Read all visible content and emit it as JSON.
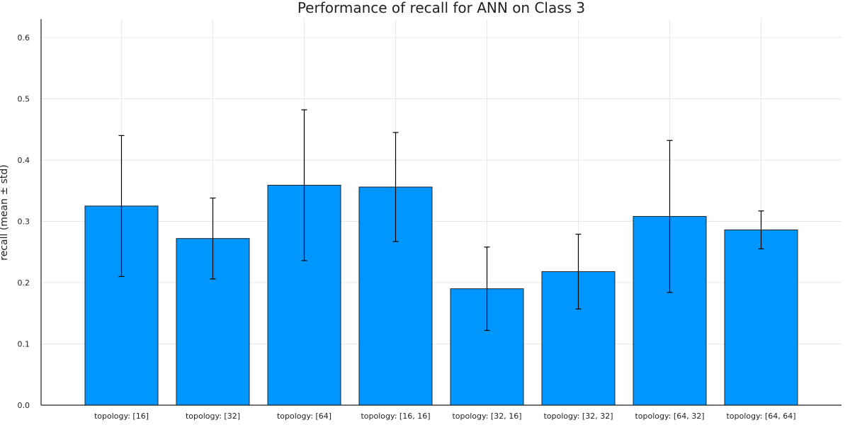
{
  "chart_data": {
    "type": "bar",
    "title": "Performance of recall for ANN on Class 3",
    "xlabel": "",
    "ylabel": "recall (mean ± std)",
    "categories": [
      "topology: [16]",
      "topology: [32]",
      "topology: [64]",
      "topology: [16, 16]",
      "topology: [32, 16]",
      "topology: [32, 32]",
      "topology: [64, 32]",
      "topology: [64, 64]"
    ],
    "values": [
      0.325,
      0.272,
      0.359,
      0.356,
      0.19,
      0.218,
      0.308,
      0.286
    ],
    "errors": [
      0.115,
      0.066,
      0.123,
      0.089,
      0.068,
      0.061,
      0.124,
      0.031
    ],
    "ylim": [
      0,
      0.63
    ],
    "yticks": [
      "0.0",
      "0.1",
      "0.2",
      "0.3",
      "0.4",
      "0.5",
      "0.6"
    ],
    "grid": true,
    "legend": "none",
    "bar_color": "#0096FF"
  }
}
